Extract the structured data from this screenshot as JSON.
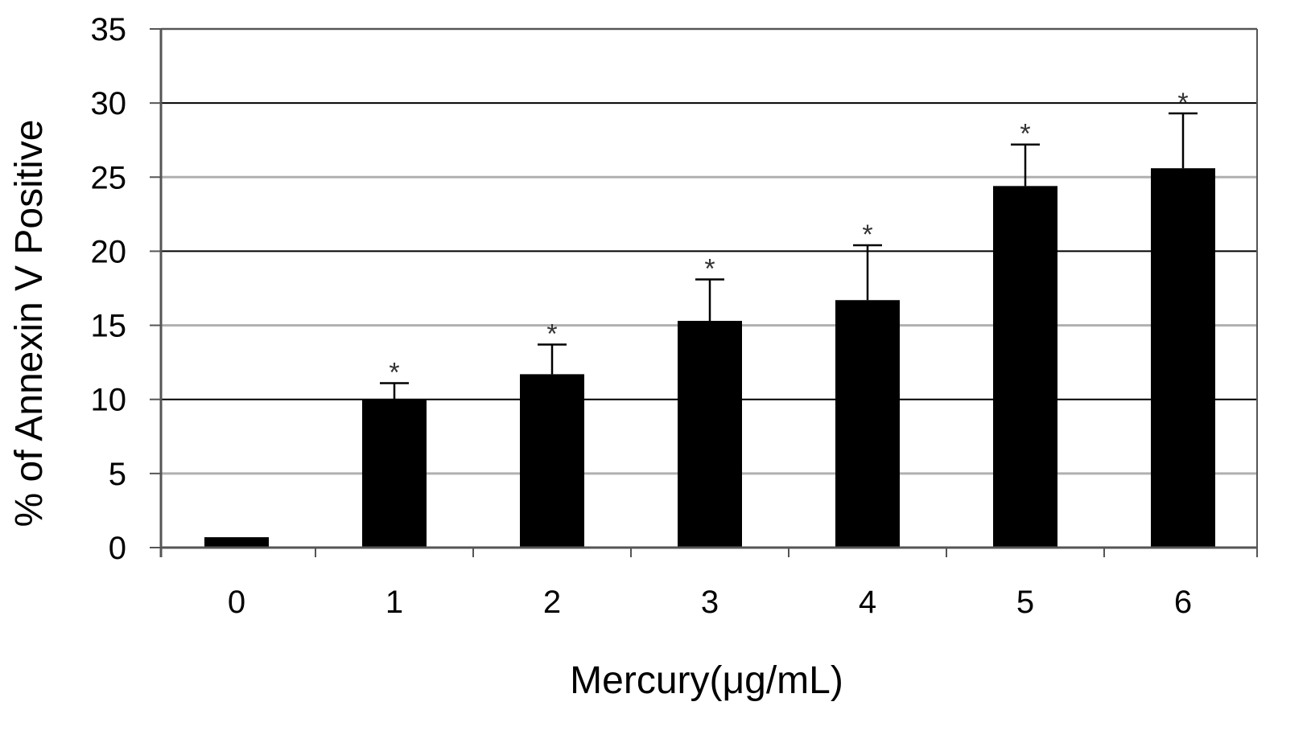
{
  "chart_data": {
    "type": "bar",
    "title": "",
    "xlabel": "Mercury(μg/mL)",
    "ylabel": "% of Annexin V Positive",
    "categories": [
      "0",
      "1",
      "2",
      "3",
      "4",
      "5",
      "6"
    ],
    "values": [
      0.7,
      10.0,
      11.7,
      15.3,
      16.7,
      24.4,
      25.6
    ],
    "error_upper": [
      0.7,
      11.1,
      13.7,
      18.1,
      20.4,
      27.2,
      29.3
    ],
    "significance": [
      "",
      "*",
      "*",
      "*",
      "*",
      "*",
      "*"
    ],
    "ylim": [
      0,
      35
    ],
    "yticks": [
      "0",
      "5",
      "10",
      "15",
      "20",
      "25",
      "30",
      "35"
    ],
    "grid": true,
    "legend": "none",
    "colors": {
      "bar": "#000000",
      "gridline": "#b0b0b0",
      "gridline_major": "#000000",
      "axis": "#555555"
    }
  }
}
